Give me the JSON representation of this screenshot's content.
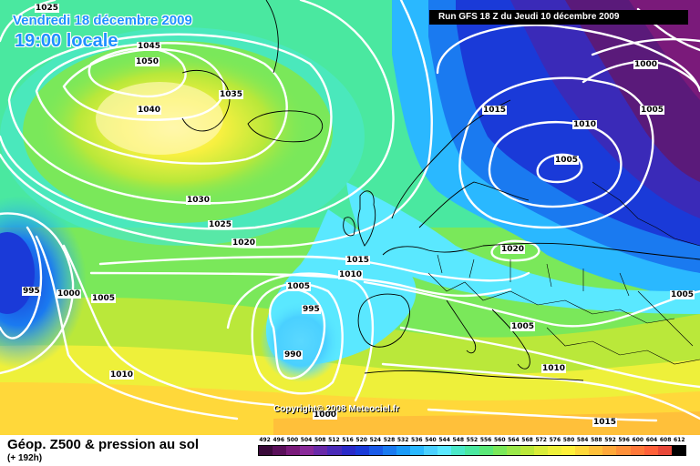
{
  "header": {
    "date": "Vendredi 18 décembre 2009",
    "time": "19:00 locale",
    "run": "Run GFS 18 Z du Jeudi 10 décembre 2009"
  },
  "copyright": "Copyright© 2008 Meteociel.fr",
  "footer": {
    "title": "Géop. Z500 & pression au sol",
    "subtitle": "(+ 192h)"
  },
  "legend": {
    "values": [
      "492",
      "496",
      "500",
      "504",
      "508",
      "512",
      "516",
      "520",
      "524",
      "528",
      "532",
      "536",
      "540",
      "544",
      "548",
      "552",
      "556",
      "560",
      "564",
      "568",
      "572",
      "576",
      "580",
      "584",
      "588",
      "592",
      "596",
      "600",
      "604",
      "608",
      "612"
    ],
    "colors": [
      "#3a0a3a",
      "#5a0f5a",
      "#7a1a7a",
      "#8a2a9a",
      "#6a2aa8",
      "#4a2ab8",
      "#2a2ac8",
      "#1a3ad8",
      "#1a5ae8",
      "#1a7af0",
      "#1a9af8",
      "#2ab8ff",
      "#4ad0ff",
      "#5ae8ff",
      "#4ae8c8",
      "#4ae8a0",
      "#5ae878",
      "#7ae85a",
      "#9ae84a",
      "#bae83a",
      "#d8ec3a",
      "#eef03a",
      "#fff03a",
      "#ffd83a",
      "#ffc03a",
      "#ffa83a",
      "#ff903a",
      "#ff783a",
      "#ff603a",
      "#e8483a",
      "#000000"
    ]
  },
  "isobars": [
    {
      "id": "1025-nw",
      "label": "1025"
    },
    {
      "id": "1045",
      "label": "1045"
    },
    {
      "id": "1050",
      "label": "1050"
    },
    {
      "id": "1035",
      "label": "1035"
    },
    {
      "id": "1040",
      "label": "1040"
    },
    {
      "id": "1030",
      "label": "1030"
    },
    {
      "id": "1025",
      "label": "1025"
    },
    {
      "id": "1020-w",
      "label": "1020"
    },
    {
      "id": "1015-c",
      "label": "1015"
    },
    {
      "id": "1010-c",
      "label": "1010"
    },
    {
      "id": "1005-c",
      "label": "1005"
    },
    {
      "id": "995-c",
      "label": "995"
    },
    {
      "id": "990",
      "label": "990"
    },
    {
      "id": "995-w",
      "label": "995"
    },
    {
      "id": "1000-w",
      "label": "1000"
    },
    {
      "id": "1005-w",
      "label": "1005"
    },
    {
      "id": "1010-sw",
      "label": "1010"
    },
    {
      "id": "1015-ne",
      "label": "1015"
    },
    {
      "id": "1010-ne",
      "label": "1010"
    },
    {
      "id": "1005-ne",
      "label": "1005"
    },
    {
      "id": "1000-ne",
      "label": "1000"
    },
    {
      "id": "1005-nne",
      "label": "1005"
    },
    {
      "id": "1020-e",
      "label": "1020"
    },
    {
      "id": "1005-se",
      "label": "1005"
    },
    {
      "id": "1010-se",
      "label": "1010"
    },
    {
      "id": "1015-s",
      "label": "1015"
    },
    {
      "id": "1005-e",
      "label": "1005"
    },
    {
      "id": "1000-s",
      "label": "1000"
    }
  ]
}
